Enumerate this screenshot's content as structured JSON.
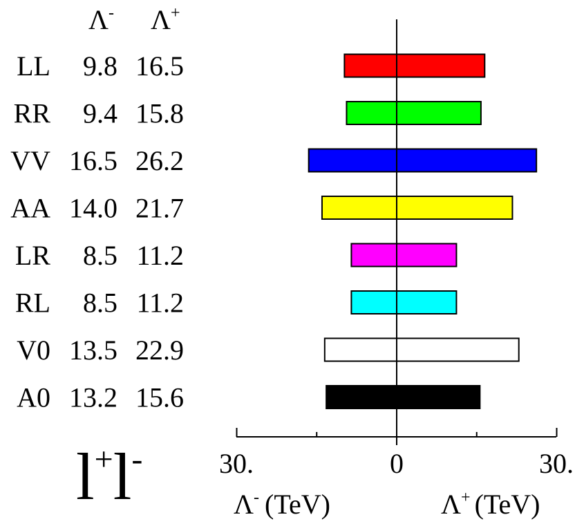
{
  "chart_data": {
    "type": "bar",
    "headers": {
      "left": {
        "base": "Λ",
        "sup": "-"
      },
      "right": {
        "base": "Λ",
        "sup": "+"
      }
    },
    "categories": [
      "LL",
      "RR",
      "VV",
      "AA",
      "LR",
      "RL",
      "V0",
      "A0"
    ],
    "series": [
      {
        "name": "Λ-",
        "values": [
          9.8,
          9.4,
          16.5,
          14.0,
          8.5,
          8.5,
          13.5,
          13.2
        ]
      },
      {
        "name": "Λ+",
        "values": [
          16.5,
          15.8,
          26.2,
          21.7,
          11.2,
          11.2,
          22.9,
          15.6
        ]
      }
    ],
    "value_labels": [
      [
        "9.8",
        "16.5"
      ],
      [
        "9.4",
        "15.8"
      ],
      [
        "16.5",
        "26.2"
      ],
      [
        "14.0",
        "21.7"
      ],
      [
        "8.5",
        "11.2"
      ],
      [
        "8.5",
        "11.2"
      ],
      [
        "13.5",
        "22.9"
      ],
      [
        "13.2",
        "15.6"
      ]
    ],
    "colors": [
      "#ff0000",
      "#00ff00",
      "#0000ff",
      "#ffff00",
      "#ff00ff",
      "#00ffff",
      "#ffffff",
      "#000000"
    ],
    "xlim": [
      -30,
      30
    ],
    "ticks": [
      "30.",
      "0",
      "30."
    ],
    "xlabel_left": {
      "base": "Λ",
      "sup": "-",
      "unit": "(TeV)"
    },
    "xlabel_right": {
      "base": "Λ",
      "sup": "+",
      "unit": "(TeV)"
    },
    "process": {
      "base": "l",
      "sup1": "+",
      "base2": "l",
      "sup2": "-"
    },
    "grid": false,
    "legend": "none"
  }
}
